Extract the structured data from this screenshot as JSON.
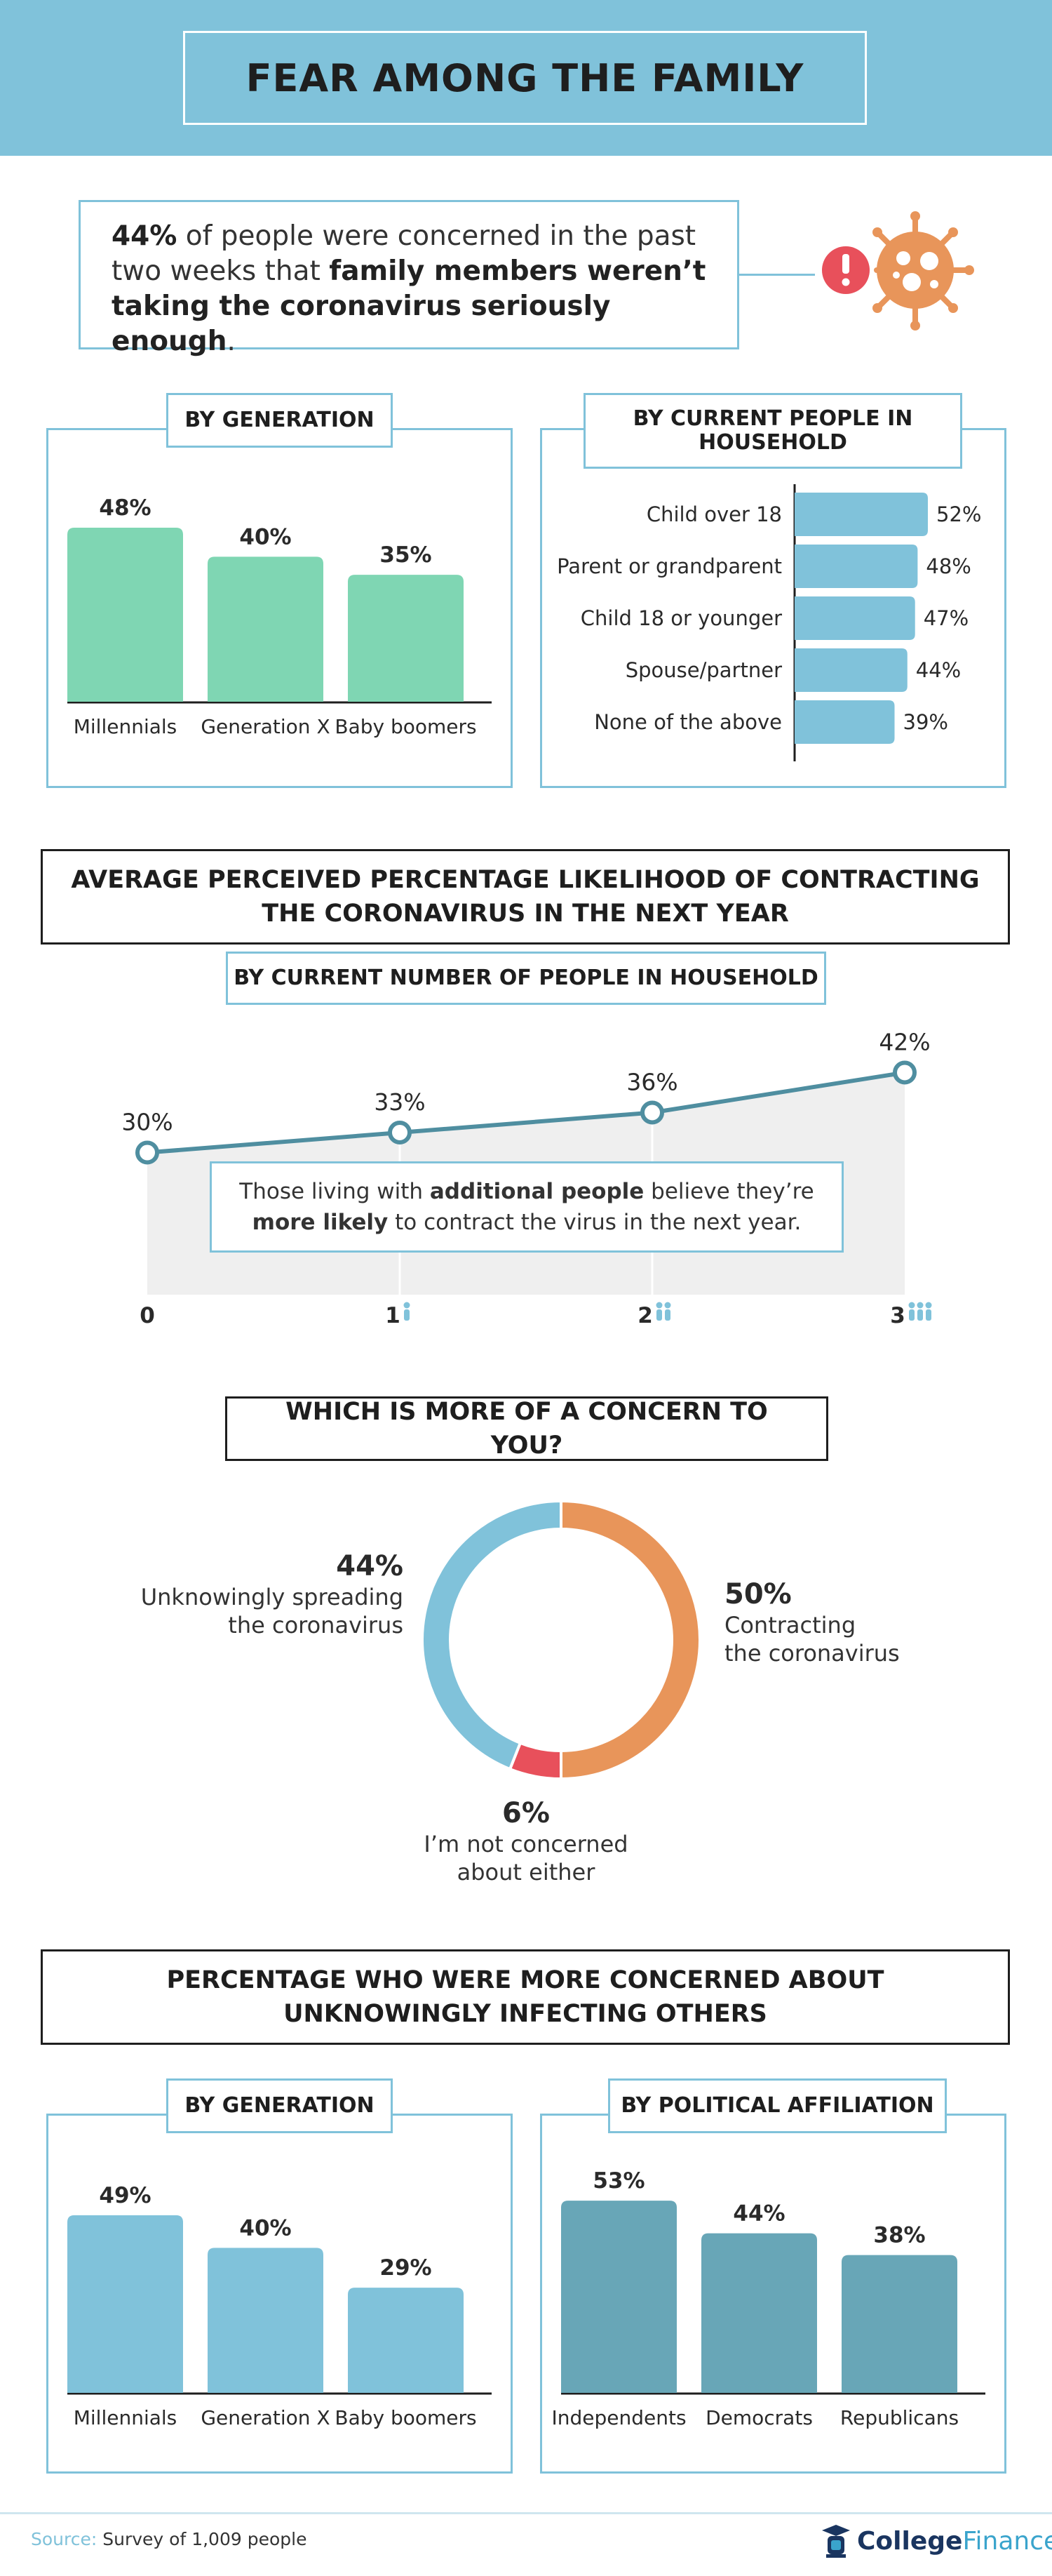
{
  "title": "FEAR AMONG THE FAMILY",
  "intro": {
    "pct": "44%",
    "text1": " of people were concerned in the past two weeks that ",
    "bold": "family members weren’t taking the coronavirus seriously enough",
    "text2": "."
  },
  "icons": {
    "alert": "exclamation-icon",
    "virus": "virus-icon",
    "logo": "graduation-lantern-icon"
  },
  "colors": {
    "blue": "#80c2da",
    "green": "#7fd6b3",
    "orange": "#e8955a",
    "red": "#e8505b",
    "teal": "#4f8ea0",
    "darkteal": "#68a6b7"
  },
  "section1": {
    "generation_tab": "BY GENERATION",
    "household_tab": "BY CURRENT PEOPLE IN HOUSEHOLD"
  },
  "section2": {
    "title": "AVERAGE PERCEIVED PERCENTAGE LIKELIHOOD OF CONTRACTING THE CORONAVIRUS IN THE NEXT YEAR",
    "tab": "BY CURRENT NUMBER OF PEOPLE IN HOUSEHOLD",
    "callout": {
      "t1": "Those living with ",
      "b1": "additional people",
      "t2": " believe they’re ",
      "b2": "more likely",
      "t3": " to contract the virus in the next year."
    }
  },
  "section3": {
    "title": "WHICH IS MORE OF A CONCERN TO YOU?"
  },
  "section4": {
    "title": "PERCENTAGE WHO WERE MORE CONCERNED ABOUT UNKNOWINGLY INFECTING OTHERS",
    "generation_tab": "BY GENERATION",
    "political_tab": "BY POLITICAL AFFILIATION"
  },
  "footer": {
    "source_label": "Source:",
    "source_text": " Survey of 1,009 people",
    "brand1": "College",
    "brand2": "Finance"
  },
  "chart_data": [
    {
      "type": "bar",
      "title": "BY GENERATION",
      "categories": [
        "Millennials",
        "Generation X",
        "Baby boomers"
      ],
      "values": [
        48,
        40,
        35
      ],
      "labels": [
        "48%",
        "40%",
        "35%"
      ],
      "color": "#7fd6b3"
    },
    {
      "type": "bar",
      "orientation": "horizontal",
      "title": "BY CURRENT PEOPLE IN HOUSEHOLD",
      "categories": [
        "Child over 18",
        "Parent or grandparent",
        "Child 18 or younger",
        "Spouse/partner",
        "None of the above"
      ],
      "values": [
        52,
        48,
        47,
        44,
        39
      ],
      "labels": [
        "52%",
        "48%",
        "47%",
        "44%",
        "39%"
      ],
      "color": "#80c2da"
    },
    {
      "type": "line",
      "title": "BY CURRENT NUMBER OF PEOPLE IN HOUSEHOLD",
      "x": [
        "0",
        "1",
        "2",
        "3"
      ],
      "values": [
        30,
        33,
        36,
        42
      ],
      "labels": [
        "30%",
        "33%",
        "36%",
        "42%"
      ],
      "person_icons": [
        0,
        1,
        2,
        3
      ],
      "color": "#4f8ea0"
    },
    {
      "type": "pie",
      "donut": true,
      "title": "WHICH IS MORE OF A CONCERN TO YOU?",
      "slices": [
        {
          "label_lines": [
            "Contracting",
            "the coronavirus"
          ],
          "value": 50,
          "pct": "50%",
          "color": "#e8955a"
        },
        {
          "label_lines": [
            "I’m not concerned",
            "about either"
          ],
          "value": 6,
          "pct": "6%",
          "color": "#e8505b"
        },
        {
          "label_lines": [
            "Unknowingly spreading",
            "the coronavirus"
          ],
          "value": 44,
          "pct": "44%",
          "color": "#80c2da"
        }
      ]
    },
    {
      "type": "bar",
      "title": "BY GENERATION",
      "categories": [
        "Millennials",
        "Generation X",
        "Baby boomers"
      ],
      "values": [
        49,
        40,
        29
      ],
      "labels": [
        "49%",
        "40%",
        "29%"
      ],
      "color": "#80c2da"
    },
    {
      "type": "bar",
      "title": "BY POLITICAL AFFILIATION",
      "categories": [
        "Independents",
        "Democrats",
        "Republicans"
      ],
      "values": [
        53,
        44,
        38
      ],
      "labels": [
        "53%",
        "44%",
        "38%"
      ],
      "color": "#68a6b7"
    }
  ]
}
